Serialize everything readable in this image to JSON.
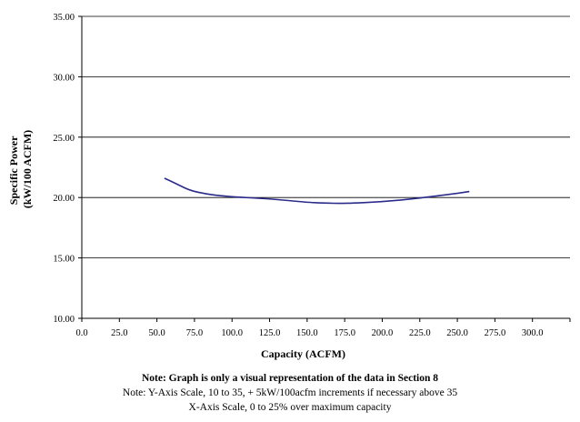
{
  "chart_data": {
    "type": "line",
    "title": "",
    "xlabel": "Capacity (ACFM)",
    "ylabel_lines": [
      "Specific Power",
      "(kW/100 ACFM)"
    ],
    "xlim": [
      0,
      325
    ],
    "ylim": [
      10,
      35
    ],
    "x_ticks": [
      "0.0",
      "25.0",
      "50.0",
      "75.0",
      "100.0",
      "125.0",
      "150.0",
      "175.0",
      "200.0",
      "225.0",
      "250.0",
      "275.0",
      "300.0"
    ],
    "y_ticks": [
      "10.00",
      "15.00",
      "20.00",
      "25.00",
      "30.00",
      "35.00"
    ],
    "grid": "horizontal",
    "line_color": "#2b2b8c",
    "series": [
      {
        "x": [
          55,
          62,
          70,
          75,
          85,
          100,
          125,
          150,
          160,
          175,
          200,
          225,
          250,
          258
        ],
        "y": [
          21.6,
          21.2,
          20.7,
          20.5,
          20.25,
          20.05,
          19.9,
          19.6,
          19.55,
          19.5,
          19.65,
          19.95,
          20.35,
          20.5
        ]
      }
    ]
  },
  "notes": {
    "line1": "Note:  Graph is only a visual representation of the data in Section 8",
    "line2": "Note:  Y-Axis Scale, 10 to 35, + 5kW/100acfm increments if necessary above 35",
    "line3": "X-Axis Scale, 0 to 25% over maximum capacity"
  }
}
